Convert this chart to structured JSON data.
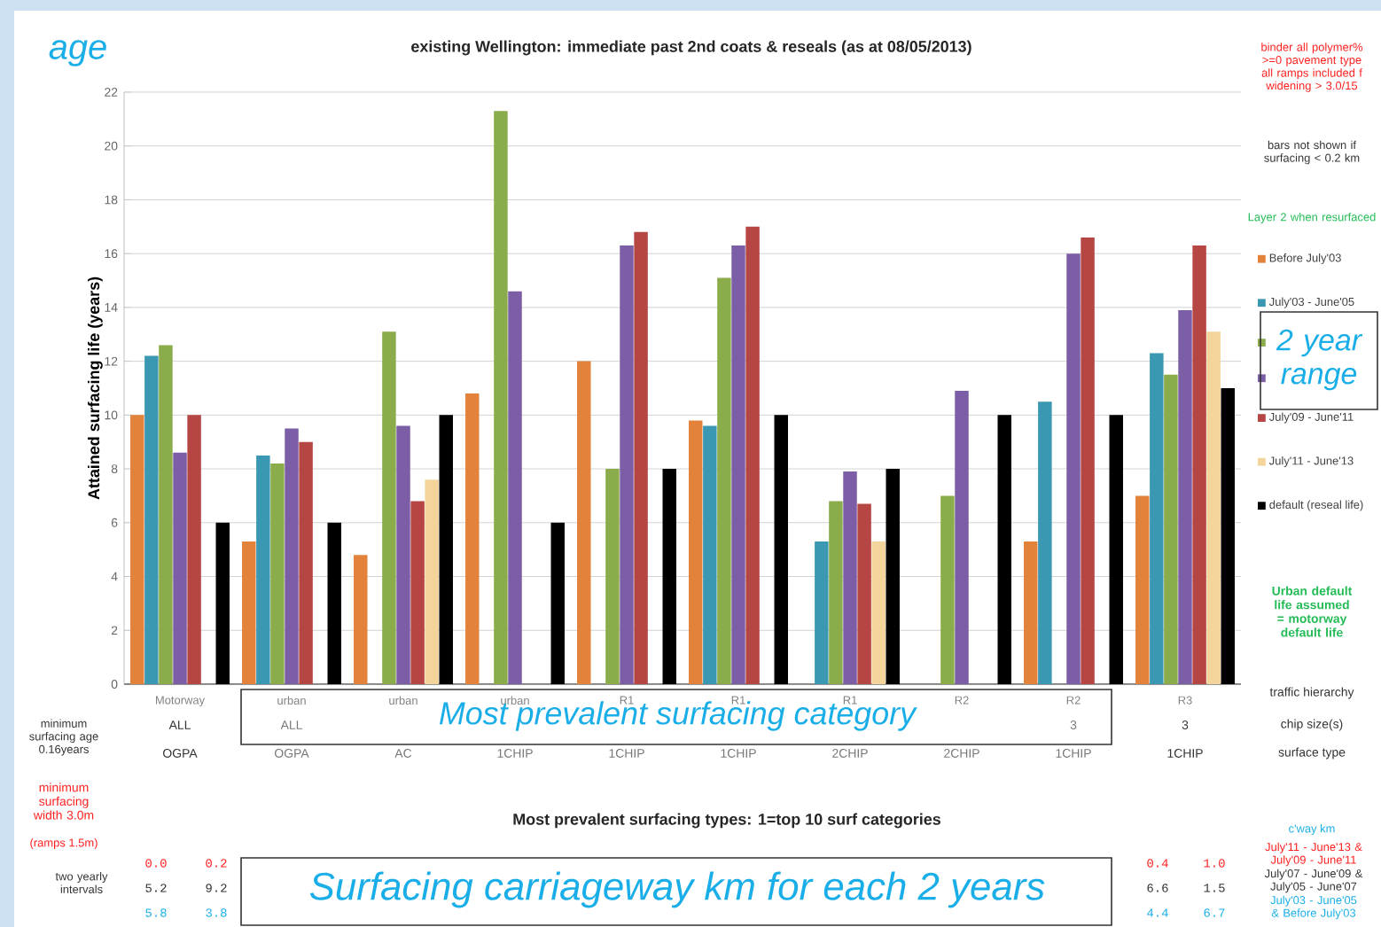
{
  "chart_data": {
    "type": "bar",
    "title": "existing Wellington: immediate past 2nd coats & reseals (as at 08/05/2013)",
    "subtitle": "Most prevalent surfacing types: 1=top 10 surf categories",
    "ylabel": "Attained surfacing life (years)",
    "categories": [
      "Motorway",
      "urban",
      "urban",
      "urban",
      "R1",
      "R1",
      "R1",
      "R2",
      "R2",
      "R3"
    ],
    "series": [
      {
        "name": "Before  July'03",
        "color": "#e3823b",
        "values": [
          10.0,
          5.3,
          4.8,
          10.8,
          12.0,
          9.8,
          null,
          null,
          5.3,
          7.0
        ]
      },
      {
        "name": "July'03 - June'05",
        "color": "#3b98b2",
        "values": [
          12.2,
          8.5,
          null,
          null,
          null,
          9.6,
          5.3,
          null,
          10.5,
          12.3
        ]
      },
      {
        "color": "#8bac4a",
        "values": [
          12.6,
          8.2,
          13.1,
          21.3,
          8.0,
          15.1,
          6.8,
          7.0,
          null,
          11.5
        ]
      },
      {
        "color": "#7b5ea5",
        "values": [
          8.6,
          9.5,
          9.6,
          14.6,
          16.3,
          16.3,
          7.9,
          10.9,
          16.0,
          13.9
        ]
      },
      {
        "name": "July'09 - June'11",
        "color": "#b54644",
        "values": [
          10.0,
          9.0,
          6.8,
          null,
          16.8,
          17.0,
          6.7,
          null,
          16.6,
          16.3
        ]
      },
      {
        "name": "July'11 - June'13",
        "color": "#f3d49a",
        "values": [
          null,
          null,
          7.6,
          null,
          null,
          null,
          5.3,
          null,
          null,
          13.1
        ]
      },
      {
        "name": "default (reseal life)",
        "color": "#000000",
        "values": [
          6,
          6,
          10,
          6,
          8,
          10,
          8,
          10,
          10,
          11
        ]
      }
    ],
    "ylim": [
      0,
      22
    ],
    "yticks": [
      0,
      2,
      4,
      6,
      8,
      10,
      12,
      14,
      16,
      18,
      20,
      22
    ],
    "grid": "y",
    "legend": "right",
    "annotations": [
      "age",
      "binder all polymer% >=0 pavement type all ramps included f widening > 3.0/15",
      "bars not shown if surfacing < 0.2 km",
      "Layer 2 when resurfaced",
      "2 year range",
      "Urban default life assumed = motorway default life",
      "traffic hierarchy",
      "chip size(s)",
      "surface type",
      "minimum surfacing age 0.16years",
      "Most prevalent surfacing category",
      "minimum surfacing width 3.0m",
      "(ramps 1.5m)",
      "two yearly intervals",
      "Surfacing carriageway km for each 2 years",
      "c'way km",
      "July'11 - June'13 & July'09 - June'11",
      "July'07 - June'09 & July'05 - June'07",
      "July'03 - June'05 & Before July'03",
      "ALL",
      "ALL",
      "3",
      "3",
      "OGPA",
      "OGPA",
      "AC",
      "1CHIP",
      "1CHIP",
      "1CHIP",
      "2CHIP",
      "2CHIP",
      "1CHIP",
      "1CHIP",
      "0.0",
      "0.2",
      "5.2",
      "9.2",
      "5.8",
      "3.8",
      "0.4",
      "1.0",
      "6.6",
      "1.5",
      "4.4",
      "6.7"
    ]
  }
}
